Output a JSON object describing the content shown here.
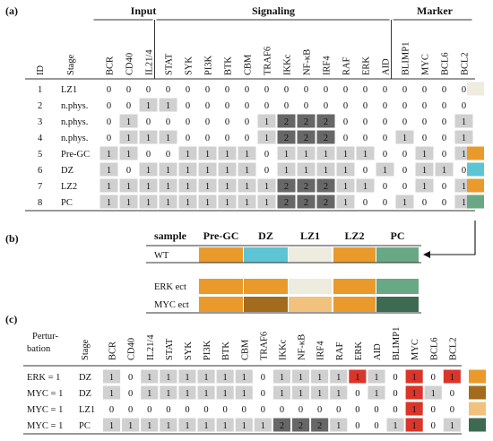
{
  "panel_a": {
    "label": "(a)",
    "groups": [
      "Input",
      "Signaling",
      "Marker"
    ],
    "id_header": "ID",
    "stage_header": "Stage",
    "columns": [
      "BCR",
      "CD40",
      "IL21/4",
      "STAT",
      "SYK",
      "PI3K",
      "BTK",
      "CBM",
      "TRAF6",
      "IKKc",
      "NF-κB",
      "IRF4",
      "RAF",
      "ERK",
      "AID",
      "BLIMP1",
      "MYC",
      "BCL6",
      "BCL2"
    ],
    "rows": [
      {
        "id": "1",
        "stage": "LZ1",
        "values": [
          0,
          0,
          0,
          0,
          0,
          0,
          0,
          0,
          0,
          0,
          0,
          0,
          0,
          0,
          0,
          0,
          0,
          0,
          0
        ],
        "color": "#eeebdf"
      },
      {
        "id": "2",
        "stage": "n.phys.",
        "values": [
          0,
          0,
          1,
          1,
          0,
          0,
          0,
          0,
          0,
          0,
          0,
          0,
          0,
          0,
          0,
          0,
          0,
          0,
          0
        ],
        "color": ""
      },
      {
        "id": "3",
        "stage": "n.phys.",
        "values": [
          0,
          1,
          0,
          0,
          0,
          0,
          0,
          0,
          1,
          2,
          2,
          2,
          0,
          0,
          0,
          0,
          0,
          0,
          1
        ],
        "color": ""
      },
      {
        "id": "4",
        "stage": "n.phys.",
        "values": [
          0,
          1,
          1,
          1,
          0,
          0,
          0,
          0,
          1,
          2,
          2,
          2,
          0,
          0,
          0,
          1,
          0,
          0,
          1
        ],
        "color": ""
      },
      {
        "id": "5",
        "stage": "Pre-GC",
        "values": [
          1,
          1,
          0,
          0,
          1,
          1,
          1,
          1,
          0,
          1,
          1,
          1,
          1,
          1,
          0,
          0,
          1,
          0,
          1
        ],
        "color": "#e99a2a"
      },
      {
        "id": "6",
        "stage": "DZ",
        "values": [
          1,
          0,
          1,
          1,
          1,
          1,
          1,
          1,
          0,
          1,
          1,
          1,
          1,
          0,
          1,
          0,
          1,
          1,
          0
        ],
        "color": "#5dc4d4"
      },
      {
        "id": "7",
        "stage": "LZ2",
        "values": [
          1,
          1,
          1,
          1,
          1,
          1,
          1,
          1,
          1,
          2,
          2,
          2,
          1,
          1,
          0,
          0,
          1,
          0,
          1
        ],
        "color": "#e99a2a"
      },
      {
        "id": "8",
        "stage": "PC",
        "values": [
          1,
          1,
          1,
          1,
          1,
          1,
          1,
          1,
          1,
          2,
          2,
          2,
          1,
          0,
          0,
          1,
          0,
          0,
          1
        ],
        "color": "#69a884"
      }
    ]
  },
  "panel_b": {
    "label": "(b)",
    "header": [
      "sample",
      "Pre-GC",
      "DZ",
      "LZ1",
      "LZ2",
      "PC"
    ],
    "rows": [
      {
        "name": "WT",
        "colors": [
          "#e99a2a",
          "#5dc4d4",
          "#eeebdf",
          "#e99a2a",
          "#69a884"
        ]
      },
      {
        "name": "ERK ect",
        "colors": [
          "#e99a2a",
          "#e99a2a",
          "#eeebdf",
          "#e99a2a",
          "#69a884"
        ]
      },
      {
        "name": "MYC ect",
        "colors": [
          "#e99a2a",
          "#a36b1c",
          "#f1c17e",
          "#e99a2a",
          "#3d6b52"
        ]
      }
    ]
  },
  "panel_c": {
    "label": "(c)",
    "pert_header": "Pertur-\nbation",
    "stage_header": "Stage",
    "columns": [
      "BCR",
      "CD40",
      "IL21/4",
      "STAT",
      "SYK",
      "PI3K",
      "BTK",
      "CBM",
      "TRAF6",
      "IKKc",
      "NF-κB",
      "IRF4",
      "RAF",
      "ERK",
      "AID",
      "BLIMP1",
      "MYC",
      "BCL6",
      "BCL2"
    ],
    "rows": [
      {
        "pert": "ERK = 1",
        "stage": "DZ",
        "values": [
          1,
          0,
          1,
          1,
          1,
          1,
          1,
          1,
          0,
          1,
          1,
          1,
          1,
          1,
          1,
          0,
          1,
          0,
          1
        ],
        "red": [
          13,
          16,
          18
        ],
        "color": "#e99a2a"
      },
      {
        "pert": "MYC = 1",
        "stage": "DZ",
        "values": [
          1,
          0,
          1,
          1,
          1,
          1,
          1,
          1,
          0,
          1,
          1,
          1,
          1,
          0,
          1,
          0,
          1,
          1,
          0
        ],
        "red": [
          16
        ],
        "color": "#a36b1c"
      },
      {
        "pert": "MYC = 1",
        "stage": "LZ1",
        "values": [
          0,
          0,
          0,
          0,
          0,
          0,
          0,
          0,
          0,
          0,
          0,
          0,
          0,
          0,
          0,
          0,
          1,
          0,
          0
        ],
        "red": [
          16
        ],
        "color": "#f1c17e"
      },
      {
        "pert": "MYC = 1",
        "stage": "PC",
        "values": [
          1,
          1,
          1,
          1,
          1,
          1,
          1,
          1,
          1,
          2,
          2,
          2,
          1,
          0,
          0,
          1,
          1,
          0,
          1
        ],
        "red": [
          16
        ],
        "color": "#3d6b52"
      }
    ]
  },
  "colors": {
    "one": "#d0d0d0",
    "two": "#676767",
    "red": "#d9352b",
    "line": "#333333"
  }
}
